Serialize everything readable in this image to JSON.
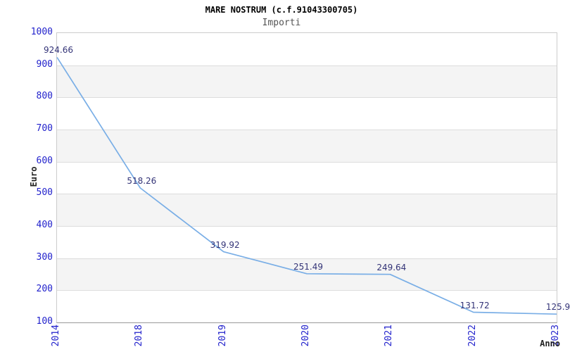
{
  "chart_data": {
    "type": "line",
    "title": "MARE NOSTRUM (c.f.91043300705)",
    "subtitle": "Importi",
    "xlabel": "Anno",
    "ylabel": "Euro",
    "categories": [
      "2014",
      "2018",
      "2019",
      "2020",
      "2021",
      "2022",
      "2023"
    ],
    "series": [
      {
        "name": "Importi",
        "values": [
          924.66,
          518.26,
          319.92,
          251.49,
          249.64,
          131.72,
          125.9
        ]
      }
    ],
    "point_labels": [
      "924.66",
      "518.26",
      "319.92",
      "251.49",
      "249.64",
      "131.72",
      "125.9"
    ],
    "ylim": [
      100,
      1000
    ],
    "yticks": [
      1000,
      900,
      800,
      700,
      600,
      500,
      400,
      300,
      200,
      100
    ],
    "grid": "horizontal-gridlines-with-alternating-bands",
    "legend": "none",
    "colors": {
      "line": "#79aee6",
      "tick_label": "#2222cc",
      "point_label": "#333377",
      "band": "#f4f4f4",
      "gridline": "#dddddd",
      "plot_border": "#cccccc",
      "title": "#000000",
      "subtitle": "#555555",
      "axis_title": "#222222"
    }
  }
}
